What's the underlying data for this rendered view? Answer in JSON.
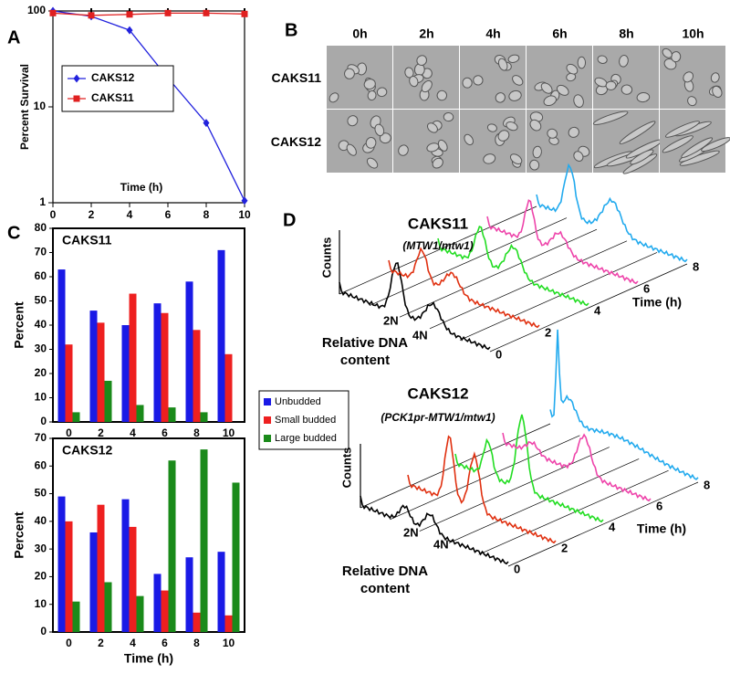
{
  "chart_data": [
    {
      "type": "line",
      "xlabel": "Time (h)",
      "ylabel": "Percent Survival",
      "x": [
        0,
        2,
        4,
        6,
        8,
        10
      ],
      "series": [
        {
          "name": "CAKS12",
          "color": "#2222dd",
          "marker": "diamond",
          "values": [
            100,
            88,
            63,
            20,
            6.8,
            1.05
          ]
        },
        {
          "name": "CAKS11",
          "color": "#e02020",
          "marker": "square",
          "values": [
            95,
            90,
            92,
            95,
            95,
            93
          ]
        }
      ],
      "xlim": [
        0,
        10
      ],
      "ylim": [
        1,
        100
      ],
      "xticks": [
        0,
        2,
        4,
        6,
        8,
        10
      ],
      "yticks": [
        1,
        10,
        100
      ],
      "yscale": "log",
      "legend": "upper left"
    },
    {
      "type": "bar",
      "title": "CAKS11",
      "ylabel": "Percent",
      "categories": [
        "0",
        "2",
        "4",
        "6",
        "8",
        "10"
      ],
      "series": [
        {
          "name": "Unbudded",
          "color": "#1a1ae6",
          "values": [
            63,
            46,
            40,
            49,
            58,
            71
          ]
        },
        {
          "name": "Small budded",
          "color": "#ee2020",
          "values": [
            32,
            41,
            53,
            45,
            38,
            28
          ]
        },
        {
          "name": "Large budded",
          "color": "#1a8a1a",
          "values": [
            4,
            17,
            7,
            6,
            4,
            0
          ]
        }
      ],
      "ylim": [
        0,
        80
      ],
      "yticks": [
        0,
        10,
        20,
        30,
        40,
        50,
        60,
        70,
        80
      ],
      "legend": "right"
    },
    {
      "type": "bar",
      "title": "CAKS12",
      "ylabel": "Percent",
      "xlabel": "Time (h)",
      "categories": [
        "0",
        "2",
        "4",
        "6",
        "8",
        "10"
      ],
      "series": [
        {
          "color": "#1a1ae6",
          "values": [
            49,
            36,
            48,
            21,
            27,
            29
          ]
        },
        {
          "color": "#ee2020",
          "values": [
            40,
            46,
            38,
            15,
            7,
            6
          ]
        },
        {
          "color": "#1a8a1a",
          "values": [
            11,
            18,
            13,
            62,
            66,
            54
          ]
        }
      ],
      "ylim": [
        0,
        70
      ],
      "yticks": [
        0,
        10,
        20,
        30,
        40,
        50,
        60,
        70
      ]
    }
  ],
  "figure": {
    "panel_labels": [
      "A",
      "B",
      "C",
      "D"
    ],
    "microscopy": {
      "columns": [
        "0h",
        "2h",
        "4h",
        "6h",
        "8h",
        "10h"
      ],
      "rows": [
        "CAKS11",
        "CAKS12"
      ]
    },
    "flow": [
      {
        "title": "CAKS11",
        "subtitle": "(MTW1/mtw1)",
        "y_label": "Counts",
        "peaks": [
          "2N",
          "4N"
        ],
        "x_label": [
          "Relative DNA",
          "content"
        ],
        "time_label": "Time (h)",
        "time_ticks": [
          0,
          2,
          4,
          6,
          8
        ]
      },
      {
        "title": "CAKS12",
        "subtitle": "(PCK1pr-MTW1/mtw1)",
        "y_label": "Counts",
        "peaks": [
          "2N",
          "4N"
        ],
        "x_label": [
          "Relative DNA",
          "content"
        ],
        "time_label": "Time (h)",
        "time_ticks": [
          0,
          2,
          4,
          6,
          8
        ]
      }
    ]
  }
}
